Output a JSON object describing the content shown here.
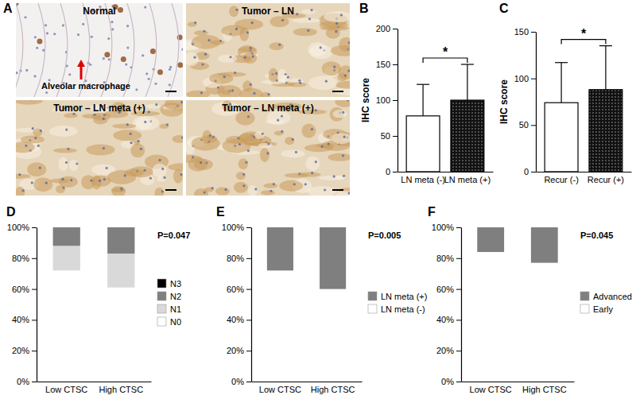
{
  "chart_data": [
    {
      "type": "image_panel",
      "panel": "A",
      "images": [
        {
          "title": "Normal",
          "annotation": "Alveolar macrophage"
        },
        {
          "title": "Tumor – LN"
        },
        {
          "title": "Tumor – LN meta (+)"
        },
        {
          "title": "Tumor – LN meta (+)"
        }
      ]
    },
    {
      "type": "bar",
      "panel": "B",
      "y_label": "IHC score",
      "categories": [
        "LN meta (-)",
        "LN meta (+)"
      ],
      "values": [
        78,
        100
      ],
      "errors": [
        44,
        50
      ],
      "colors": [
        "#ffffff",
        "#000000"
      ],
      "ylim": [
        0,
        200
      ],
      "yticks": [
        0,
        50,
        100,
        150,
        200
      ],
      "annotation": "*"
    },
    {
      "type": "bar",
      "panel": "C",
      "y_label": "IHC score",
      "categories": [
        "Recur (-)",
        "Recur (+)"
      ],
      "values": [
        74,
        88
      ],
      "errors": [
        43,
        47
      ],
      "colors": [
        "#ffffff",
        "#000000"
      ],
      "ylim": [
        0,
        150
      ],
      "yticks": [
        0,
        50,
        100,
        150
      ],
      "annotation": "*"
    },
    {
      "type": "bar",
      "panel": "D",
      "stacked": true,
      "legend": "right",
      "categories": [
        "Low CTSC",
        "High CTSC"
      ],
      "series": [
        {
          "name": "N0",
          "color": "#ffffff",
          "values": [
            72,
            61
          ]
        },
        {
          "name": "N1",
          "color": "#d9d9d9",
          "values": [
            16,
            22
          ]
        },
        {
          "name": "N2",
          "color": "#7f7f7f",
          "values": [
            12,
            17
          ]
        },
        {
          "name": "N3",
          "color": "#000000",
          "values": [
            0,
            0
          ]
        }
      ],
      "ylim": [
        0,
        100
      ],
      "yticks": [
        {
          "value": 0,
          "label": "0%"
        },
        {
          "value": 20,
          "label": "20%"
        },
        {
          "value": 40,
          "label": "40%"
        },
        {
          "value": 60,
          "label": "60%"
        },
        {
          "value": 80,
          "label": "80%"
        },
        {
          "value": 100,
          "label": "100%"
        }
      ],
      "annotation": "P=0.047"
    },
    {
      "type": "bar",
      "panel": "E",
      "stacked": true,
      "legend": "right",
      "categories": [
        "Low CTSC",
        "High CTSC"
      ],
      "series": [
        {
          "name": "LN meta (-)",
          "color": "#ffffff",
          "values": [
            72,
            60
          ]
        },
        {
          "name": "LN meta (+)",
          "color": "#7f7f7f",
          "values": [
            28,
            40
          ]
        }
      ],
      "ylim": [
        0,
        100
      ],
      "yticks": [
        {
          "value": 0,
          "label": "0%"
        },
        {
          "value": 20,
          "label": "20%"
        },
        {
          "value": 40,
          "label": "40%"
        },
        {
          "value": 60,
          "label": "60%"
        },
        {
          "value": 80,
          "label": "80%"
        },
        {
          "value": 100,
          "label": "100%"
        }
      ],
      "annotation": "P=0.005"
    },
    {
      "type": "bar",
      "panel": "F",
      "stacked": true,
      "legend": "right",
      "categories": [
        "Low CTSC",
        "High CTSC"
      ],
      "series": [
        {
          "name": "Early",
          "color": "#ffffff",
          "values": [
            84,
            77
          ]
        },
        {
          "name": "Advanced",
          "color": "#7f7f7f",
          "values": [
            16,
            23
          ]
        }
      ],
      "ylim": [
        0,
        100
      ],
      "yticks": [
        {
          "value": 0,
          "label": "0%"
        },
        {
          "value": 20,
          "label": "20%"
        },
        {
          "value": 40,
          "label": "40%"
        },
        {
          "value": 60,
          "label": "60%"
        },
        {
          "value": 80,
          "label": "80%"
        },
        {
          "value": 100,
          "label": "100%"
        }
      ],
      "annotation": "P=0.045"
    }
  ]
}
